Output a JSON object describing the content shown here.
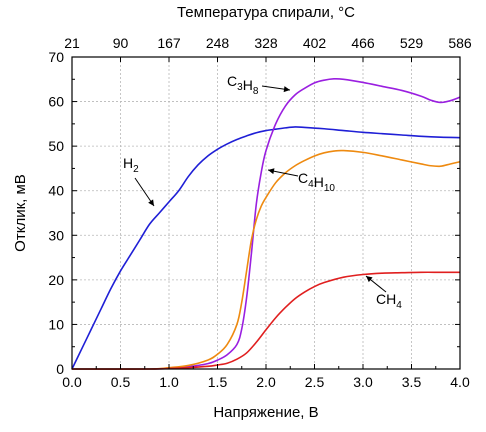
{
  "chart_data": {
    "type": "line",
    "xlabel": "Напряжение, В",
    "ylabel": "Отклик, мВ",
    "top_axis_label": "Температура спирали, °С",
    "xlim": [
      0,
      4
    ],
    "ylim": [
      0,
      70
    ],
    "x_ticks": [
      0.0,
      0.5,
      1.0,
      1.5,
      2.0,
      2.5,
      3.0,
      3.5,
      4.0
    ],
    "x_tick_labels": [
      "0.0",
      "0.5",
      "1.0",
      "1.5",
      "2.0",
      "2.5",
      "3.0",
      "3.5",
      "4.0"
    ],
    "y_ticks": [
      0,
      10,
      20,
      30,
      40,
      50,
      60,
      70
    ],
    "y_tick_labels": [
      "0",
      "10",
      "20",
      "30",
      "40",
      "50",
      "60",
      "70"
    ],
    "top_ticks": [
      {
        "x": 0.0,
        "label": "21"
      },
      {
        "x": 0.5,
        "label": "90"
      },
      {
        "x": 1.0,
        "label": "167"
      },
      {
        "x": 1.5,
        "label": "248"
      },
      {
        "x": 2.0,
        "label": "328"
      },
      {
        "x": 2.5,
        "label": "402"
      },
      {
        "x": 3.0,
        "label": "466"
      },
      {
        "x": 3.5,
        "label": "529"
      },
      {
        "x": 4.0,
        "label": "586"
      }
    ],
    "grid": true,
    "series": [
      {
        "name": "H2",
        "label_main": "H",
        "label_sub": "2",
        "color": "#1f1fd6",
        "x": [
          0.0,
          0.1,
          0.2,
          0.3,
          0.4,
          0.5,
          0.6,
          0.7,
          0.8,
          0.9,
          1.0,
          1.1,
          1.2,
          1.3,
          1.4,
          1.5,
          1.6,
          1.7,
          1.8,
          1.9,
          2.0,
          2.1,
          2.2,
          2.3,
          2.4,
          2.6,
          2.8,
          3.0,
          3.2,
          3.4,
          3.6,
          3.8,
          4.0
        ],
        "y": [
          0,
          4.5,
          9,
          13.5,
          18,
          22,
          25.5,
          29,
          32.5,
          35,
          37.5,
          40,
          43.2,
          45.8,
          47.8,
          49.3,
          50.5,
          51.5,
          52.3,
          53,
          53.5,
          53.8,
          54.1,
          54.3,
          54.2,
          53.9,
          53.5,
          53.1,
          52.8,
          52.5,
          52.2,
          52.0,
          51.9
        ]
      },
      {
        "name": "C3H8",
        "label_main": "C",
        "label_sub": "3",
        "label_main2": "H",
        "label_sub2": "8",
        "color": "#9a1fe0",
        "x": [
          0.0,
          0.8,
          1.0,
          1.2,
          1.4,
          1.5,
          1.6,
          1.7,
          1.75,
          1.8,
          1.85,
          1.9,
          1.95,
          2.0,
          2.1,
          2.2,
          2.3,
          2.4,
          2.5,
          2.6,
          2.7,
          2.8,
          3.0,
          3.2,
          3.4,
          3.6,
          3.7,
          3.8,
          3.9,
          4.0
        ],
        "y": [
          0,
          0,
          0.2,
          0.5,
          1.2,
          2.0,
          3.2,
          5.5,
          9,
          16,
          26,
          37,
          44,
          49,
          55,
          59,
          61.5,
          63,
          64.2,
          64.8,
          65.1,
          65.0,
          64.3,
          63.4,
          62.5,
          61.2,
          60.3,
          59.8,
          60.2,
          61.0
        ]
      },
      {
        "name": "C4H10",
        "label_main": "C",
        "label_sub": "4",
        "label_main2": "H",
        "label_sub2": "10",
        "color": "#ee8a10",
        "x": [
          0.0,
          0.8,
          1.0,
          1.2,
          1.4,
          1.5,
          1.6,
          1.7,
          1.75,
          1.8,
          1.85,
          1.9,
          1.95,
          2.0,
          2.1,
          2.2,
          2.3,
          2.4,
          2.5,
          2.6,
          2.7,
          2.8,
          3.0,
          3.2,
          3.4,
          3.6,
          3.7,
          3.8,
          3.9,
          4.0
        ],
        "y": [
          0,
          0,
          0.3,
          0.8,
          2.0,
          3.3,
          5.5,
          10,
          15,
          22,
          29,
          33.5,
          36.5,
          38.5,
          41.8,
          44,
          45.6,
          46.8,
          47.8,
          48.5,
          48.9,
          49.0,
          48.6,
          47.8,
          46.9,
          46.0,
          45.6,
          45.5,
          46.0,
          46.5
        ]
      },
      {
        "name": "CH4",
        "label_main": "CH",
        "label_sub": "4",
        "color": "#e01f1f",
        "x": [
          0.0,
          0.8,
          1.0,
          1.2,
          1.4,
          1.5,
          1.6,
          1.7,
          1.8,
          1.9,
          2.0,
          2.1,
          2.2,
          2.3,
          2.4,
          2.5,
          2.6,
          2.8,
          3.0,
          3.2,
          3.4,
          3.6,
          3.8,
          4.0
        ],
        "y": [
          0,
          0,
          0.1,
          0.3,
          0.6,
          0.9,
          1.3,
          2.2,
          3.6,
          6.0,
          8.8,
          11.5,
          13.8,
          15.8,
          17.3,
          18.5,
          19.4,
          20.6,
          21.2,
          21.5,
          21.6,
          21.7,
          21.7,
          21.7
        ]
      }
    ]
  }
}
